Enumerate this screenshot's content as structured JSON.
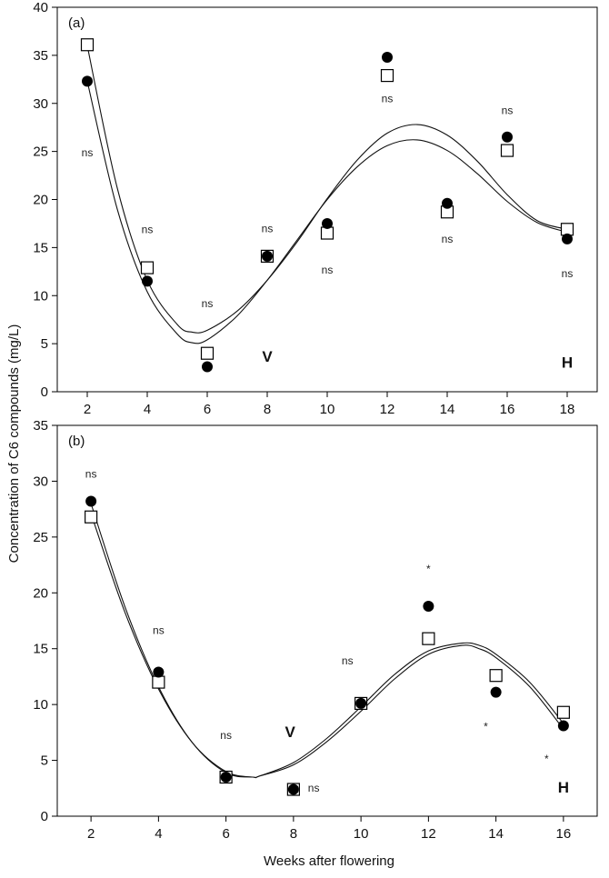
{
  "figure": {
    "ylabel": "Concentration of C6 compounds (mg/L)",
    "xlabel": "Weeks after flowering"
  },
  "chart_data": [
    {
      "type": "scatter",
      "panel_label": "(a)",
      "xlabel": "Weeks after flowering",
      "ylabel": "Concentration of C6 compounds (mg/L)",
      "xlim": [
        1,
        19
      ],
      "ylim": [
        0,
        40
      ],
      "xticks": [
        2,
        4,
        6,
        8,
        10,
        12,
        14,
        16,
        18
      ],
      "yticks": [
        0,
        5,
        10,
        15,
        20,
        25,
        30,
        35,
        40
      ],
      "grid": false,
      "series": [
        {
          "marker": "filled-circle",
          "color": "#000000",
          "x": [
            2,
            4,
            6,
            8,
            10,
            12,
            14,
            16,
            18
          ],
          "y": [
            32.3,
            11.5,
            2.6,
            14.1,
            17.5,
            34.8,
            19.6,
            26.5,
            15.9
          ],
          "fit": [
            [
              2,
              32.3
            ],
            [
              3,
              19.0
            ],
            [
              4,
              10.4
            ],
            [
              5,
              6.0
            ],
            [
              5.5,
              5.1
            ],
            [
              6,
              5.4
            ],
            [
              7,
              7.9
            ],
            [
              8,
              11.6
            ],
            [
              9,
              15.8
            ],
            [
              10,
              20.0
            ],
            [
              11,
              23.4
            ],
            [
              12,
              25.6
            ],
            [
              13,
              26.2
            ],
            [
              14,
              25.1
            ],
            [
              15,
              22.7
            ],
            [
              16,
              19.8
            ],
            [
              17,
              17.6
            ],
            [
              18,
              16.6
            ]
          ]
        },
        {
          "marker": "open-square",
          "color": "#000000",
          "x": [
            2,
            4,
            6,
            8,
            10,
            12,
            14,
            16,
            18
          ],
          "y": [
            36.1,
            12.9,
            4.0,
            14.1,
            16.5,
            32.9,
            18.7,
            25.1,
            16.9
          ],
          "fit": [
            [
              2,
              36.0
            ],
            [
              3,
              21.2
            ],
            [
              4,
              11.6
            ],
            [
              5,
              7.0
            ],
            [
              5.5,
              6.2
            ],
            [
              6,
              6.4
            ],
            [
              7,
              8.4
            ],
            [
              8,
              11.6
            ],
            [
              9,
              15.6
            ],
            [
              10,
              20.1
            ],
            [
              11,
              24.1
            ],
            [
              12,
              26.9
            ],
            [
              13,
              27.8
            ],
            [
              14,
              26.7
            ],
            [
              15,
              24.0
            ],
            [
              16,
              20.5
            ],
            [
              17,
              17.8
            ],
            [
              18,
              16.9
            ]
          ]
        }
      ],
      "annotations": [
        {
          "text": "ns",
          "x": 2.0,
          "y": 24.5
        },
        {
          "text": "ns",
          "x": 4.0,
          "y": 16.5
        },
        {
          "text": "ns",
          "x": 6.0,
          "y": 8.8
        },
        {
          "text": "ns",
          "x": 8.0,
          "y": 16.6
        },
        {
          "text": "ns",
          "x": 10.0,
          "y": 12.3
        },
        {
          "text": "ns",
          "x": 12.0,
          "y": 30.1
        },
        {
          "text": "ns",
          "x": 14.0,
          "y": 15.5
        },
        {
          "text": "ns",
          "x": 16.0,
          "y": 28.9
        },
        {
          "text": "ns",
          "x": 18.0,
          "y": 11.9
        }
      ],
      "stage_labels": [
        {
          "text": "V",
          "x": 8.0,
          "y": 3.1
        },
        {
          "text": "H",
          "x": 18.0,
          "y": 2.5
        }
      ]
    },
    {
      "type": "scatter",
      "panel_label": "(b)",
      "xlabel": "Weeks after flowering",
      "ylabel": "Concentration of C6 compounds (mg/L)",
      "xlim": [
        1,
        17
      ],
      "ylim": [
        0,
        35
      ],
      "xticks": [
        2,
        4,
        6,
        8,
        10,
        12,
        14,
        16
      ],
      "yticks": [
        0,
        5,
        10,
        15,
        20,
        25,
        30,
        35
      ],
      "grid": false,
      "series": [
        {
          "marker": "filled-circle",
          "color": "#000000",
          "x": [
            2,
            4,
            6,
            8,
            10,
            12,
            14,
            16
          ],
          "y": [
            28.2,
            12.9,
            3.5,
            2.4,
            10.1,
            18.8,
            11.1,
            8.1
          ],
          "fit": [
            [
              2,
              28.0
            ],
            [
              3,
              18.8
            ],
            [
              4,
              11.6
            ],
            [
              5,
              6.6
            ],
            [
              6,
              3.9
            ],
            [
              6.8,
              3.5
            ],
            [
              7,
              3.6
            ],
            [
              8,
              4.6
            ],
            [
              9,
              6.7
            ],
            [
              10,
              9.4
            ],
            [
              11,
              12.3
            ],
            [
              12,
              14.5
            ],
            [
              13,
              15.3
            ],
            [
              13.5,
              15.0
            ],
            [
              14,
              14.2
            ],
            [
              15,
              11.6
            ],
            [
              16,
              7.8
            ]
          ]
        },
        {
          "marker": "open-square",
          "color": "#000000",
          "x": [
            2,
            4,
            6,
            8,
            10,
            12,
            14,
            16
          ],
          "y": [
            26.8,
            12.0,
            3.5,
            2.4,
            10.1,
            15.9,
            12.6,
            9.3
          ],
          "fit": [
            [
              2,
              27.1
            ],
            [
              3,
              18.3
            ],
            [
              4,
              11.4
            ],
            [
              5,
              6.6
            ],
            [
              6,
              4.0
            ],
            [
              6.8,
              3.5
            ],
            [
              7,
              3.6
            ],
            [
              8,
              4.8
            ],
            [
              9,
              7.0
            ],
            [
              10,
              9.8
            ],
            [
              11,
              12.7
            ],
            [
              12,
              14.8
            ],
            [
              13,
              15.5
            ],
            [
              13.5,
              15.3
            ],
            [
              14,
              14.5
            ],
            [
              15,
              12.0
            ],
            [
              16,
              8.3
            ]
          ]
        }
      ],
      "annotations": [
        {
          "text": "ns",
          "x": 2.0,
          "y": 30.3
        },
        {
          "text": "ns",
          "x": 4.0,
          "y": 16.3
        },
        {
          "text": "ns",
          "x": 6.0,
          "y": 6.9
        },
        {
          "text": "ns",
          "x": 8.6,
          "y": 2.2
        },
        {
          "text": "ns",
          "x": 9.6,
          "y": 13.6
        },
        {
          "text": "*",
          "x": 12.0,
          "y": 21.8
        },
        {
          "text": "*",
          "x": 13.7,
          "y": 7.7
        },
        {
          "text": "*",
          "x": 15.5,
          "y": 4.8
        }
      ],
      "stage_labels": [
        {
          "text": "V",
          "x": 7.9,
          "y": 7.1
        },
        {
          "text": "H",
          "x": 16.0,
          "y": 2.1
        }
      ]
    }
  ]
}
